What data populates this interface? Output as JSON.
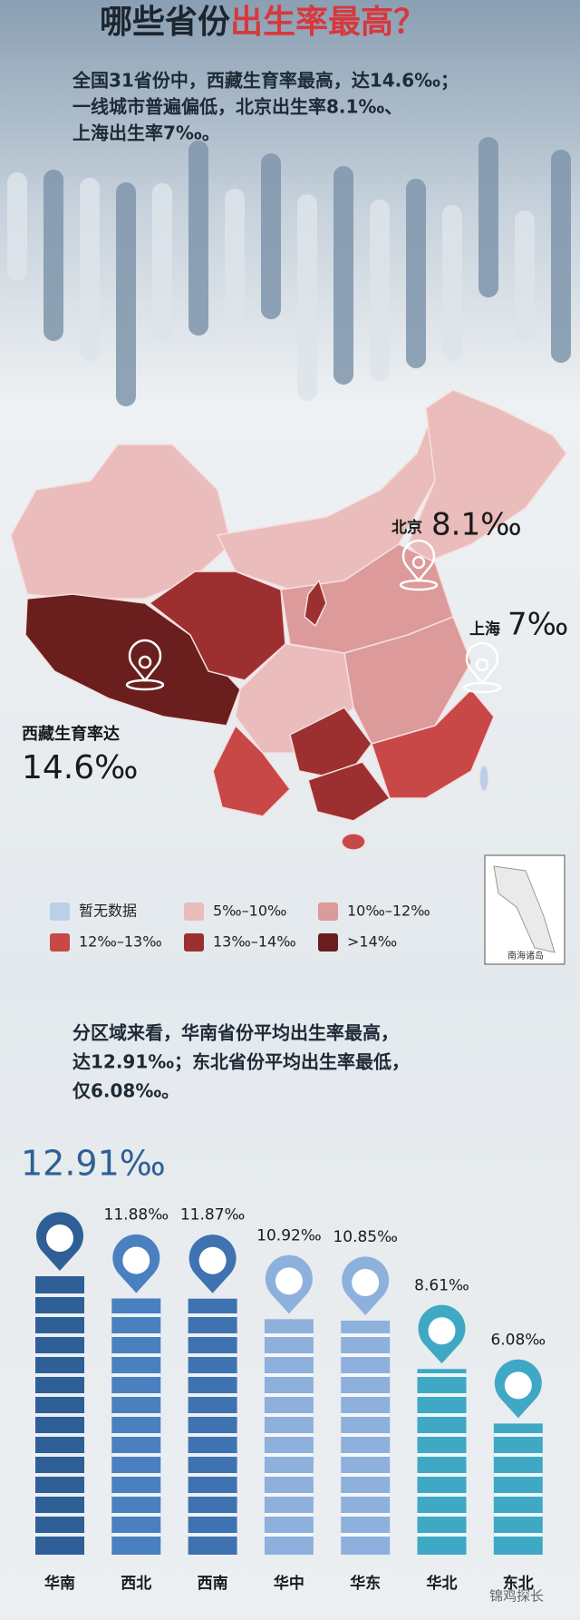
{
  "title": {
    "part1": "哪些省份",
    "part2": "出生率最高？"
  },
  "intro": [
    "全国31省份中，西藏生育率最高，达14.6‰；",
    "一线城市普遍偏低，北京出生率8.1‰、",
    "上海出生率7‰。"
  ],
  "map": {
    "callouts": [
      {
        "label": "北京",
        "value": "8.1‰"
      },
      {
        "label": "上海",
        "value": "7‰"
      },
      {
        "label": "西藏生育率达",
        "value": "14.6‰"
      }
    ],
    "legend": [
      {
        "label": "暂无数据",
        "color": "#b9d0e8"
      },
      {
        "label": "5‰–10‰",
        "color": "#eabcbc"
      },
      {
        "label": "10‰–12‰",
        "color": "#dc9a9a"
      },
      {
        "label": "12‰–13‰",
        "color": "#c84848"
      },
      {
        "label": "13‰–14‰",
        "color": "#9c3030"
      },
      {
        "label": ">14‰",
        "color": "#6a1e1e"
      }
    ],
    "inset_label": "南海诸岛"
  },
  "summary": [
    "分区域来看，华南省份平均出生率最高，",
    "达12.91‰；东北省份平均出生率最低，",
    "仅6.08‰。"
  ],
  "chart_data": {
    "type": "bar",
    "categories": [
      "华南",
      "西北",
      "西南",
      "华中",
      "华东",
      "华北",
      "东北"
    ],
    "values": [
      12.91,
      11.88,
      11.87,
      10.92,
      10.85,
      8.61,
      6.08
    ],
    "value_labels": [
      "12.91‰",
      "11.88‰",
      "11.87‰",
      "10.92‰",
      "10.85‰",
      "8.61‰",
      "6.08‰"
    ],
    "colors": [
      "#2f5f97",
      "#4a80c0",
      "#3f72b0",
      "#8eb0dc",
      "#8eb0dc",
      "#3fa8c4",
      "#3fa8c4"
    ]
  },
  "watermark": "锦鸡探长"
}
